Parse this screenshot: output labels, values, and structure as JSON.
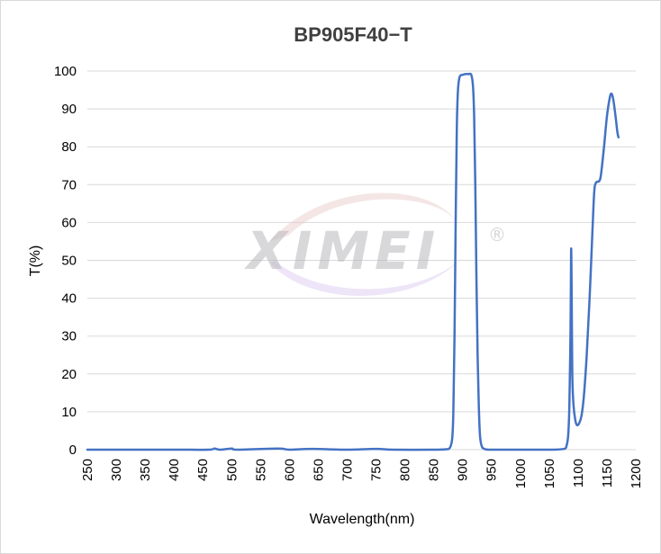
{
  "chart_data": {
    "type": "line",
    "title": "BP905F40−T",
    "xlabel": "Wavelength(nm)",
    "ylabel": "T(%)",
    "xlim": [
      250,
      1200
    ],
    "ylim": [
      0,
      100
    ],
    "x_ticks": [
      250,
      300,
      350,
      400,
      450,
      500,
      550,
      600,
      650,
      700,
      750,
      800,
      850,
      900,
      950,
      1000,
      1050,
      1100,
      1150,
      1200
    ],
    "y_ticks": [
      0,
      10,
      20,
      30,
      40,
      50,
      60,
      70,
      80,
      90,
      100
    ],
    "grid": true,
    "watermark": "XIMEI",
    "watermark_mark": "®",
    "series": [
      {
        "color": "#4472c4",
        "points": [
          [
            250,
            0
          ],
          [
            300,
            0
          ],
          [
            400,
            0
          ],
          [
            460,
            0
          ],
          [
            470,
            0.3
          ],
          [
            480,
            0
          ],
          [
            500,
            0.3
          ],
          [
            510,
            0
          ],
          [
            580,
            0.3
          ],
          [
            600,
            0
          ],
          [
            640,
            0.2
          ],
          [
            700,
            0
          ],
          [
            750,
            0.2
          ],
          [
            780,
            0
          ],
          [
            850,
            0
          ],
          [
            870,
            0.1
          ],
          [
            878,
            0.5
          ],
          [
            882,
            3
          ],
          [
            884,
            10
          ],
          [
            886,
            30
          ],
          [
            888,
            60
          ],
          [
            890,
            85
          ],
          [
            892,
            95
          ],
          [
            895,
            98.5
          ],
          [
            900,
            99
          ],
          [
            905,
            99.2
          ],
          [
            910,
            99.2
          ],
          [
            915,
            99
          ],
          [
            918,
            96
          ],
          [
            920,
            88
          ],
          [
            922,
            70
          ],
          [
            924,
            45
          ],
          [
            926,
            25
          ],
          [
            928,
            12
          ],
          [
            930,
            4
          ],
          [
            933,
            1
          ],
          [
            938,
            0.2
          ],
          [
            950,
            0
          ],
          [
            1000,
            0
          ],
          [
            1050,
            0
          ],
          [
            1075,
            0.2
          ],
          [
            1080,
            1
          ],
          [
            1083,
            4
          ],
          [
            1085,
            12
          ],
          [
            1087,
            32
          ],
          [
            1088,
            53
          ],
          [
            1089,
            40
          ],
          [
            1090,
            20
          ],
          [
            1092,
            12
          ],
          [
            1095,
            8
          ],
          [
            1098,
            6.5
          ],
          [
            1102,
            7
          ],
          [
            1106,
            9
          ],
          [
            1110,
            14
          ],
          [
            1115,
            25
          ],
          [
            1120,
            40
          ],
          [
            1125,
            58
          ],
          [
            1128,
            68
          ],
          [
            1131,
            70.5
          ],
          [
            1137,
            71
          ],
          [
            1140,
            73
          ],
          [
            1145,
            80
          ],
          [
            1150,
            88
          ],
          [
            1155,
            93
          ],
          [
            1158,
            94
          ],
          [
            1161,
            92.5
          ],
          [
            1165,
            88
          ],
          [
            1168,
            84
          ],
          [
            1170,
            82.5
          ]
        ]
      }
    ]
  }
}
